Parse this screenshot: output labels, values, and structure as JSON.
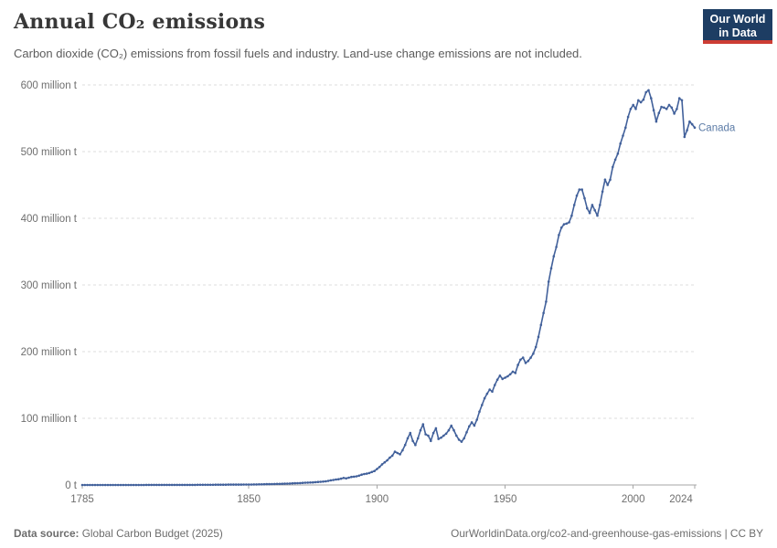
{
  "header": {
    "title": "Annual CO₂ emissions",
    "subtitle": "Carbon dioxide (CO₂) emissions from fossil fuels and industry. Land-use change emissions are not included.",
    "logo": {
      "line1": "Our World",
      "line2": "in Data",
      "bg_color": "#1d3d63",
      "bar_color": "#cd3d34"
    }
  },
  "footer": {
    "source_label": "Data source:",
    "source_value": " Global Carbon Budget (2025)",
    "credit": "OurWorldinData.org/co2-and-greenhouse-gas-emissions | CC BY"
  },
  "chart_data": {
    "type": "line",
    "title": "Annual CO₂ emissions",
    "entity_label": "Canada",
    "xlabel": "",
    "ylabel": "",
    "unit": "million t",
    "grid": true,
    "legend_position": "end-of-line-label",
    "xlim": [
      1785,
      2024
    ],
    "ylim": [
      0,
      600
    ],
    "x_ticks": [
      1785,
      1850,
      1900,
      1950,
      2000,
      2024
    ],
    "x_tick_labels": [
      "1785",
      "1850",
      "1900",
      "1950",
      "2000",
      "2024"
    ],
    "y_ticks": [
      {
        "value": 0,
        "label": "0 t"
      },
      {
        "value": 100,
        "label": "100 million t"
      },
      {
        "value": 200,
        "label": "200 million t"
      },
      {
        "value": 300,
        "label": "300 million t"
      },
      {
        "value": 400,
        "label": "400 million t"
      },
      {
        "value": 500,
        "label": "500 million t"
      },
      {
        "value": 600,
        "label": "600 million t"
      }
    ],
    "start_year": 1785,
    "values": [
      0.01,
      0.01,
      0.01,
      0.01,
      0.01,
      0.02,
      0.02,
      0.02,
      0.02,
      0.02,
      0.02,
      0.03,
      0.03,
      0.03,
      0.03,
      0.04,
      0.04,
      0.04,
      0.05,
      0.05,
      0.05,
      0.05,
      0.06,
      0.06,
      0.06,
      0.07,
      0.07,
      0.07,
      0.08,
      0.08,
      0.08,
      0.09,
      0.09,
      0.09,
      0.1,
      0.1,
      0.11,
      0.12,
      0.13,
      0.14,
      0.15,
      0.16,
      0.17,
      0.18,
      0.2,
      0.22,
      0.24,
      0.26,
      0.28,
      0.3,
      0.32,
      0.34,
      0.36,
      0.38,
      0.4,
      0.42,
      0.45,
      0.48,
      0.5,
      0.52,
      0.55,
      0.58,
      0.6,
      0.65,
      0.68,
      0.7,
      0.75,
      0.8,
      0.85,
      0.9,
      1.0,
      1.1,
      1.2,
      1.3,
      1.4,
      1.5,
      1.6,
      1.7,
      1.8,
      1.9,
      2.0,
      2.2,
      2.4,
      2.6,
      2.7,
      2.9,
      3.1,
      3.4,
      3.6,
      3.7,
      3.9,
      4.2,
      4.5,
      4.8,
      5.1,
      5.5,
      6.2,
      7.0,
      7.6,
      8.2,
      8.6,
      9.4,
      10.5,
      9.8,
      11.0,
      12,
      12.5,
      13,
      14,
      15.5,
      16.5,
      17,
      18,
      19.5,
      21,
      24,
      27,
      31,
      34,
      37,
      41,
      44,
      50,
      48,
      46,
      52,
      60,
      70,
      78,
      66,
      60,
      70,
      82,
      91,
      76,
      74,
      66,
      78,
      85,
      69,
      71,
      74,
      77,
      82,
      89,
      82,
      74,
      68,
      65,
      70,
      79,
      88,
      94,
      89,
      98,
      110,
      120,
      130,
      137,
      143,
      140,
      150,
      158,
      164,
      159,
      161,
      163,
      166,
      170,
      168,
      180,
      188,
      191,
      183,
      186,
      191,
      197,
      207,
      222,
      240,
      258,
      275,
      305,
      325,
      343,
      357,
      375,
      386,
      391,
      392,
      394,
      404,
      420,
      434,
      443,
      443,
      430,
      415,
      408,
      420,
      412,
      404,
      420,
      440,
      458,
      450,
      458,
      477,
      488,
      497,
      512,
      524,
      536,
      552,
      564,
      570,
      564,
      577,
      574,
      578,
      589,
      592,
      580,
      562,
      545,
      558,
      567,
      566,
      564,
      570,
      566,
      557,
      564,
      580,
      577,
      522,
      532,
      545,
      541,
      536
    ],
    "line_color": "#42619b",
    "label_color": "#5b7ba6",
    "colors": {
      "grid": "#dcdcdc",
      "axis": "#a5a5a5",
      "tick_text": "#6e6e6e"
    }
  }
}
